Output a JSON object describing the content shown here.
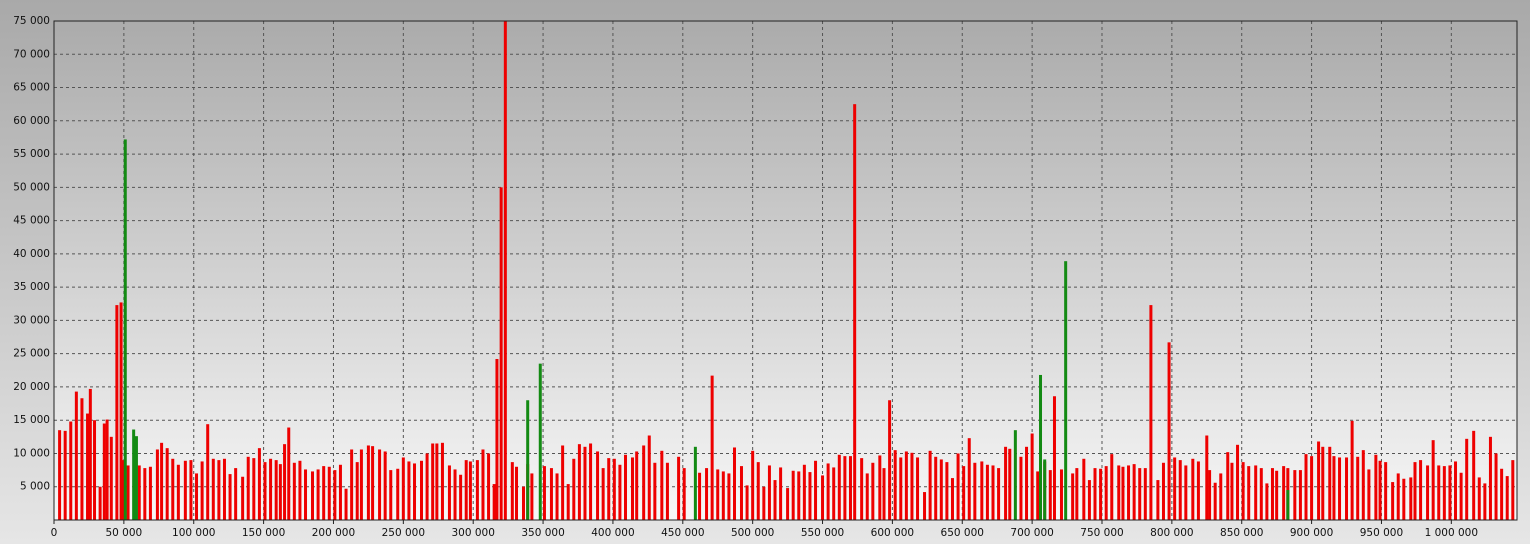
{
  "chart_data": {
    "type": "bar",
    "xlim": [
      0,
      1047000
    ],
    "ylim": [
      0,
      75000
    ],
    "grid": true,
    "xticks": [
      0,
      {
        "value": 50000,
        "label": "50 000"
      },
      {
        "value": 100000,
        "label": "100 000"
      },
      {
        "value": 150000,
        "label": "150 000"
      },
      {
        "value": 200000,
        "label": "200 000"
      },
      {
        "value": 250000,
        "label": "250 000"
      },
      {
        "value": 300000,
        "label": "300 000"
      },
      {
        "value": 350000,
        "label": "350 000"
      },
      {
        "value": 400000,
        "label": "400 000"
      },
      {
        "value": 450000,
        "label": "450 000"
      },
      {
        "value": 500000,
        "label": "500 000"
      },
      {
        "value": 550000,
        "label": "550 000"
      },
      {
        "value": 600000,
        "label": "600 000"
      },
      {
        "value": 650000,
        "label": "650 000"
      },
      {
        "value": 700000,
        "label": "700 000"
      },
      {
        "value": 750000,
        "label": "750 000"
      },
      {
        "value": 800000,
        "label": "800 000"
      },
      {
        "value": 850000,
        "label": "850 000"
      },
      {
        "value": 900000,
        "label": "900 000"
      },
      {
        "value": 950000,
        "label": "950 000"
      },
      {
        "value": 1000000,
        "label": "1 000 000"
      }
    ],
    "yticks": [
      {
        "value": 5000,
        "label": "5 000"
      },
      {
        "value": 10000,
        "label": "10 000"
      },
      {
        "value": 15000,
        "label": "15 000"
      },
      {
        "value": 20000,
        "label": "20 000"
      },
      {
        "value": 25000,
        "label": "25 000"
      },
      {
        "value": 30000,
        "label": "30 000"
      },
      {
        "value": 35000,
        "label": "35 000"
      },
      {
        "value": 40000,
        "label": "40 000"
      },
      {
        "value": 45000,
        "label": "45 000"
      },
      {
        "value": 50000,
        "label": "50 000"
      },
      {
        "value": 55000,
        "label": "55 000"
      },
      {
        "value": 60000,
        "label": "60 000"
      },
      {
        "value": 65000,
        "label": "65 000"
      },
      {
        "value": 70000,
        "label": "70 000"
      },
      {
        "value": 75000,
        "label": "75 000"
      }
    ],
    "series": [
      {
        "color": "#ee0000",
        "x": [
          4000,
          8000,
          12000,
          16000,
          20000,
          24000,
          26000,
          29000,
          33000,
          36000,
          38000,
          41000,
          45000,
          48000,
          50000,
          53000,
          61000,
          65000,
          69000,
          74000,
          77000,
          81000,
          85000,
          89000,
          94000,
          98000,
          102000,
          106000,
          110000,
          114000,
          118000,
          122000,
          126000,
          130000,
          135000,
          139000,
          143000,
          147000,
          151000,
          155000,
          159000,
          162000,
          165000,
          168000,
          172000,
          176000,
          180000,
          185000,
          189000,
          193000,
          197000,
          201000,
          205000,
          209000,
          213000,
          217000,
          220000,
          225000,
          228000,
          233000,
          237000,
          241000,
          246000,
          250000,
          254000,
          258000,
          263000,
          267000,
          271000,
          274000,
          278000,
          283000,
          287000,
          291000,
          295000,
          298000,
          303000,
          307000,
          311000,
          315000,
          317000,
          320000,
          323000,
          328000,
          331000,
          336000,
          339000,
          342000,
          351000,
          356000,
          360000,
          364000,
          368000,
          372000,
          376000,
          380000,
          384000,
          389000,
          393000,
          397000,
          401000,
          405000,
          409000,
          414000,
          417000,
          422000,
          426000,
          430000,
          435000,
          439000,
          447000,
          451000,
          462000,
          467000,
          471000,
          475000,
          479000,
          483000,
          487000,
          492000,
          496000,
          500000,
          504000,
          508000,
          512000,
          516000,
          520000,
          525000,
          529000,
          533000,
          537000,
          541000,
          545000,
          550000,
          554000,
          558000,
          562000,
          566000,
          570000,
          573000,
          578000,
          582000,
          586000,
          591000,
          594000,
          598000,
          602000,
          606000,
          610000,
          614000,
          618000,
          623000,
          627000,
          631000,
          635000,
          639000,
          643000,
          647000,
          651000,
          655000,
          659000,
          664000,
          668000,
          672000,
          676000,
          681000,
          684000,
          692000,
          696000,
          700000,
          704000,
          709000,
          713000,
          716000,
          721000,
          729000,
          732000,
          737000,
          741000,
          745000,
          749000,
          753000,
          757000,
          762000,
          765000,
          769000,
          773000,
          777000,
          781000,
          785000,
          790000,
          794000,
          798000,
          802000,
          806000,
          810000,
          815000,
          819000,
          825000,
          827000,
          831000,
          835000,
          840000,
          843000,
          847000,
          851000,
          855000,
          860000,
          864000,
          868000,
          872000,
          875000,
          880000,
          883000,
          888000,
          892000,
          896000,
          900000,
          905000,
          908000,
          913000,
          916000,
          920000,
          925000,
          929000,
          933000,
          937000,
          941000,
          946000,
          949000,
          953000,
          958000,
          962000,
          966000,
          971000,
          974000,
          978000,
          983000,
          987000,
          991000,
          995000,
          999000,
          1003000,
          1007000,
          1011000,
          1016000,
          1020000,
          1024000,
          1028000,
          1032000,
          1036000,
          1040000,
          1044000
        ],
        "values": [
          13500,
          13400,
          14800,
          19300,
          18300,
          16000,
          19700,
          15000,
          5000,
          14500,
          15100,
          12500,
          32300,
          32700,
          9000,
          8200,
          8200,
          7800,
          8000,
          10600,
          11600,
          10800,
          9200,
          8300,
          8900,
          9000,
          7000,
          8800,
          14400,
          9200,
          9000,
          9200,
          6900,
          7800,
          6500,
          9500,
          9300,
          10800,
          8700,
          9200,
          9000,
          8400,
          11400,
          13900,
          8600,
          8900,
          7600,
          7300,
          7600,
          8100,
          8000,
          7500,
          8300,
          4700,
          10600,
          8700,
          10600,
          11200,
          11100,
          10600,
          10300,
          7500,
          7700,
          9400,
          8800,
          8500,
          8900,
          10000,
          11500,
          11500,
          11600,
          8200,
          7600,
          6800,
          9000,
          8800,
          9000,
          10600,
          10000,
          5400,
          24200,
          50000,
          75000,
          8700,
          8000,
          5000,
          8400,
          7000,
          8100,
          7800,
          7000,
          11200,
          5400,
          9200,
          11400,
          11000,
          11500,
          10300,
          7800,
          9300,
          9200,
          8300,
          9800,
          9400,
          10300,
          11200,
          12700,
          8600,
          10400,
          8600,
          9500,
          7800,
          7100,
          7800,
          21700,
          7600,
          7300,
          7000,
          10900,
          8100,
          5200,
          10400,
          8700,
          5000,
          8200,
          6000,
          7900,
          4800,
          7400,
          7300,
          8300,
          7200,
          8900,
          6700,
          8500,
          7900,
          9800,
          9600,
          9600,
          62500,
          9300,
          7000,
          8600,
          9700,
          7800,
          18000,
          10500,
          9400,
          10300,
          10100,
          9400,
          4200,
          10400,
          9500,
          9100,
          8700,
          6300,
          10000,
          8100,
          12300,
          8600,
          8800,
          8300,
          8200,
          7800,
          11000,
          10700,
          9500,
          11000,
          13000,
          7300,
          8800,
          7500,
          18600,
          7600,
          7000,
          7800,
          9200,
          6000,
          7800,
          7700,
          8100,
          9900,
          8200,
          8000,
          8200,
          8400,
          7800,
          7800,
          32300,
          6000,
          8600,
          26700,
          9400,
          9000,
          8200,
          9200,
          8800,
          12700,
          7500,
          5600,
          7000,
          10200,
          8600,
          11300,
          8700,
          8100,
          8200,
          7800,
          5500,
          7800,
          7400,
          8100,
          7800,
          7500,
          7500,
          9900,
          9600,
          11800,
          11000,
          11000,
          9600,
          9400,
          9400,
          14900,
          9500,
          10500,
          7600,
          9800,
          8900,
          8700,
          5700,
          7000,
          6200,
          6400,
          8700,
          9000,
          8200,
          12000,
          8200,
          8100,
          8200,
          8800,
          7100,
          12200,
          13400,
          6400,
          5500,
          12500,
          10000,
          7700,
          6600,
          9000
        ]
      },
      {
        "color": "#138a13",
        "x": [
          51000,
          57000,
          59000,
          339000,
          348000,
          459000,
          688000,
          706000,
          709000,
          724000,
          883000
        ],
        "values": [
          57200,
          13600,
          12600,
          18000,
          23500,
          11000,
          13500,
          21800,
          9100,
          38900,
          4500
        ]
      }
    ]
  }
}
